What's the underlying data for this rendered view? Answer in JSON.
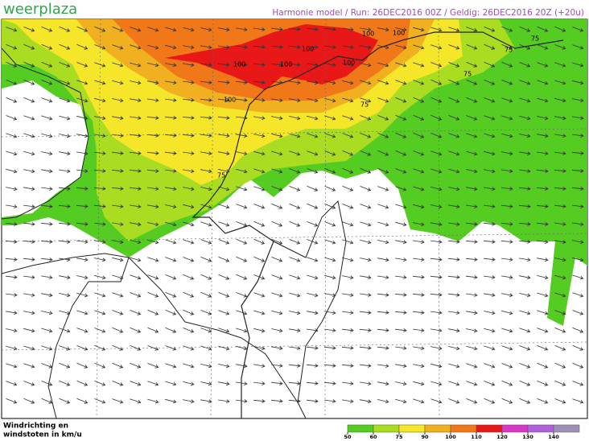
{
  "header": {
    "logo": "weerplaza",
    "info": "Harmonie model / Run: 26DEC2016 00Z / Geldig: 26DEC2016 20Z (+20u)"
  },
  "map": {
    "contour_labels": [
      "100",
      "100",
      "100",
      "100",
      "100",
      "100",
      "100",
      "75",
      "75",
      "75",
      "75",
      "75"
    ]
  },
  "footer": {
    "caption_line1": "Windrichting en",
    "caption_line2": "windstoten in km/u"
  },
  "legend": {
    "ticks": [
      50,
      60,
      75,
      90,
      100,
      110,
      120,
      130,
      140
    ],
    "colors": [
      "#55cc22",
      "#aadd22",
      "#f5e62a",
      "#f0b020",
      "#f07818",
      "#e81818",
      "#d838c8",
      "#b060d8",
      "#a090b8"
    ]
  }
}
